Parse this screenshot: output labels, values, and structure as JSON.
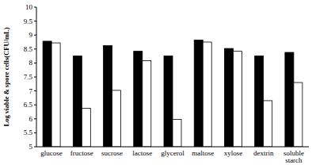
{
  "chart_data": {
    "type": "bar",
    "y_label": "Log viable & spore cells(CFU/mL)",
    "categories": [
      "glucose",
      "fructose",
      "sucrose",
      "lactose",
      "glycerol",
      "maltose",
      "xylose",
      "dextrin",
      "soluble starch"
    ],
    "series": [
      {
        "color": "#000000",
        "values": [
          8.78,
          8.25,
          8.62,
          8.42,
          8.25,
          8.82,
          8.52,
          8.25,
          8.38
        ]
      },
      {
        "color": "#ffffff",
        "values": [
          8.72,
          6.38,
          7.02,
          8.08,
          5.98,
          8.75,
          8.42,
          6.65,
          7.3
        ]
      }
    ],
    "ylim": [
      5,
      10
    ],
    "yticks": [
      5,
      5.5,
      6,
      6.5,
      7,
      7.5,
      8,
      8.5,
      9,
      9.5,
      10
    ],
    "grid": false
  }
}
